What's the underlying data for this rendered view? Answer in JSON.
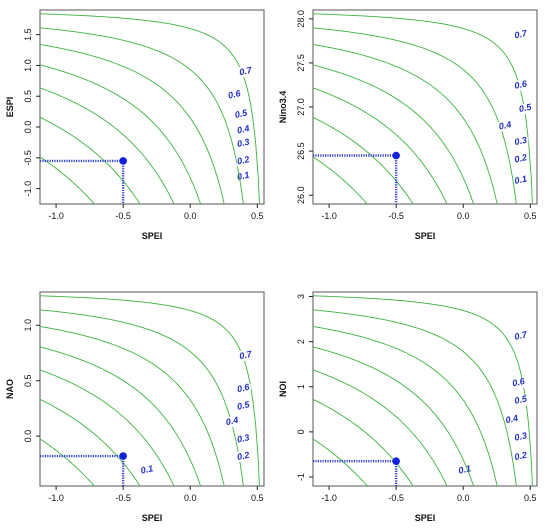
{
  "chart_data": [
    {
      "type": "contour",
      "xlabel": "SPEI",
      "ylabel": "ESPI",
      "xlim": [
        -1.12,
        0.55
      ],
      "ylim": [
        -1.25,
        1.9
      ],
      "xticks": [
        "-1.0",
        "-0.5",
        "0.0",
        "0.5"
      ],
      "yticks": [
        "-1.0",
        "-0.5",
        "0.0",
        "0.5",
        "1.0",
        "1.5"
      ],
      "levels": [
        "0.1",
        "0.2",
        "0.3",
        "0.4",
        "0.5",
        "0.6",
        "0.7"
      ],
      "point": {
        "x": -0.5,
        "y": -0.55
      }
    },
    {
      "type": "contour",
      "xlabel": "SPEI",
      "ylabel": "Nino3.4",
      "xlim": [
        -1.12,
        0.55
      ],
      "ylim": [
        25.9,
        28.1
      ],
      "xticks": [
        "-1.0",
        "-0.5",
        "0.0",
        "0.5"
      ],
      "yticks": [
        "26.0",
        "26.5",
        "27.0",
        "27.5",
        "28.0"
      ],
      "levels": [
        "0.1",
        "0.2",
        "0.3",
        "0.4",
        "0.5",
        "0.6",
        "0.7"
      ],
      "point": {
        "x": -0.5,
        "y": 26.45
      }
    },
    {
      "type": "contour",
      "xlabel": "SPEI",
      "ylabel": "NAO",
      "xlim": [
        -1.12,
        0.55
      ],
      "ylim": [
        -0.45,
        1.3
      ],
      "xticks": [
        "-1.0",
        "-0.5",
        "0.0",
        "0.5"
      ],
      "yticks": [
        "0.0",
        "0.5",
        "1.0"
      ],
      "levels": [
        "0.1",
        "0.2",
        "0.3",
        "0.4",
        "0.5",
        "0.6",
        "0.7"
      ],
      "point": {
        "x": -0.5,
        "y": -0.18
      }
    },
    {
      "type": "contour",
      "xlabel": "SPEI",
      "ylabel": "NOI",
      "xlim": [
        -1.12,
        0.55
      ],
      "ylim": [
        -1.2,
        3.1
      ],
      "xticks": [
        "-1.0",
        "-0.5",
        "0.0",
        "0.5"
      ],
      "yticks": [
        "-1",
        "0",
        "1",
        "2",
        "3"
      ],
      "levels": [
        "0.1",
        "0.2",
        "0.3",
        "0.4",
        "0.5",
        "0.6",
        "0.7"
      ],
      "point": {
        "x": -0.5,
        "y": -0.65
      }
    }
  ]
}
